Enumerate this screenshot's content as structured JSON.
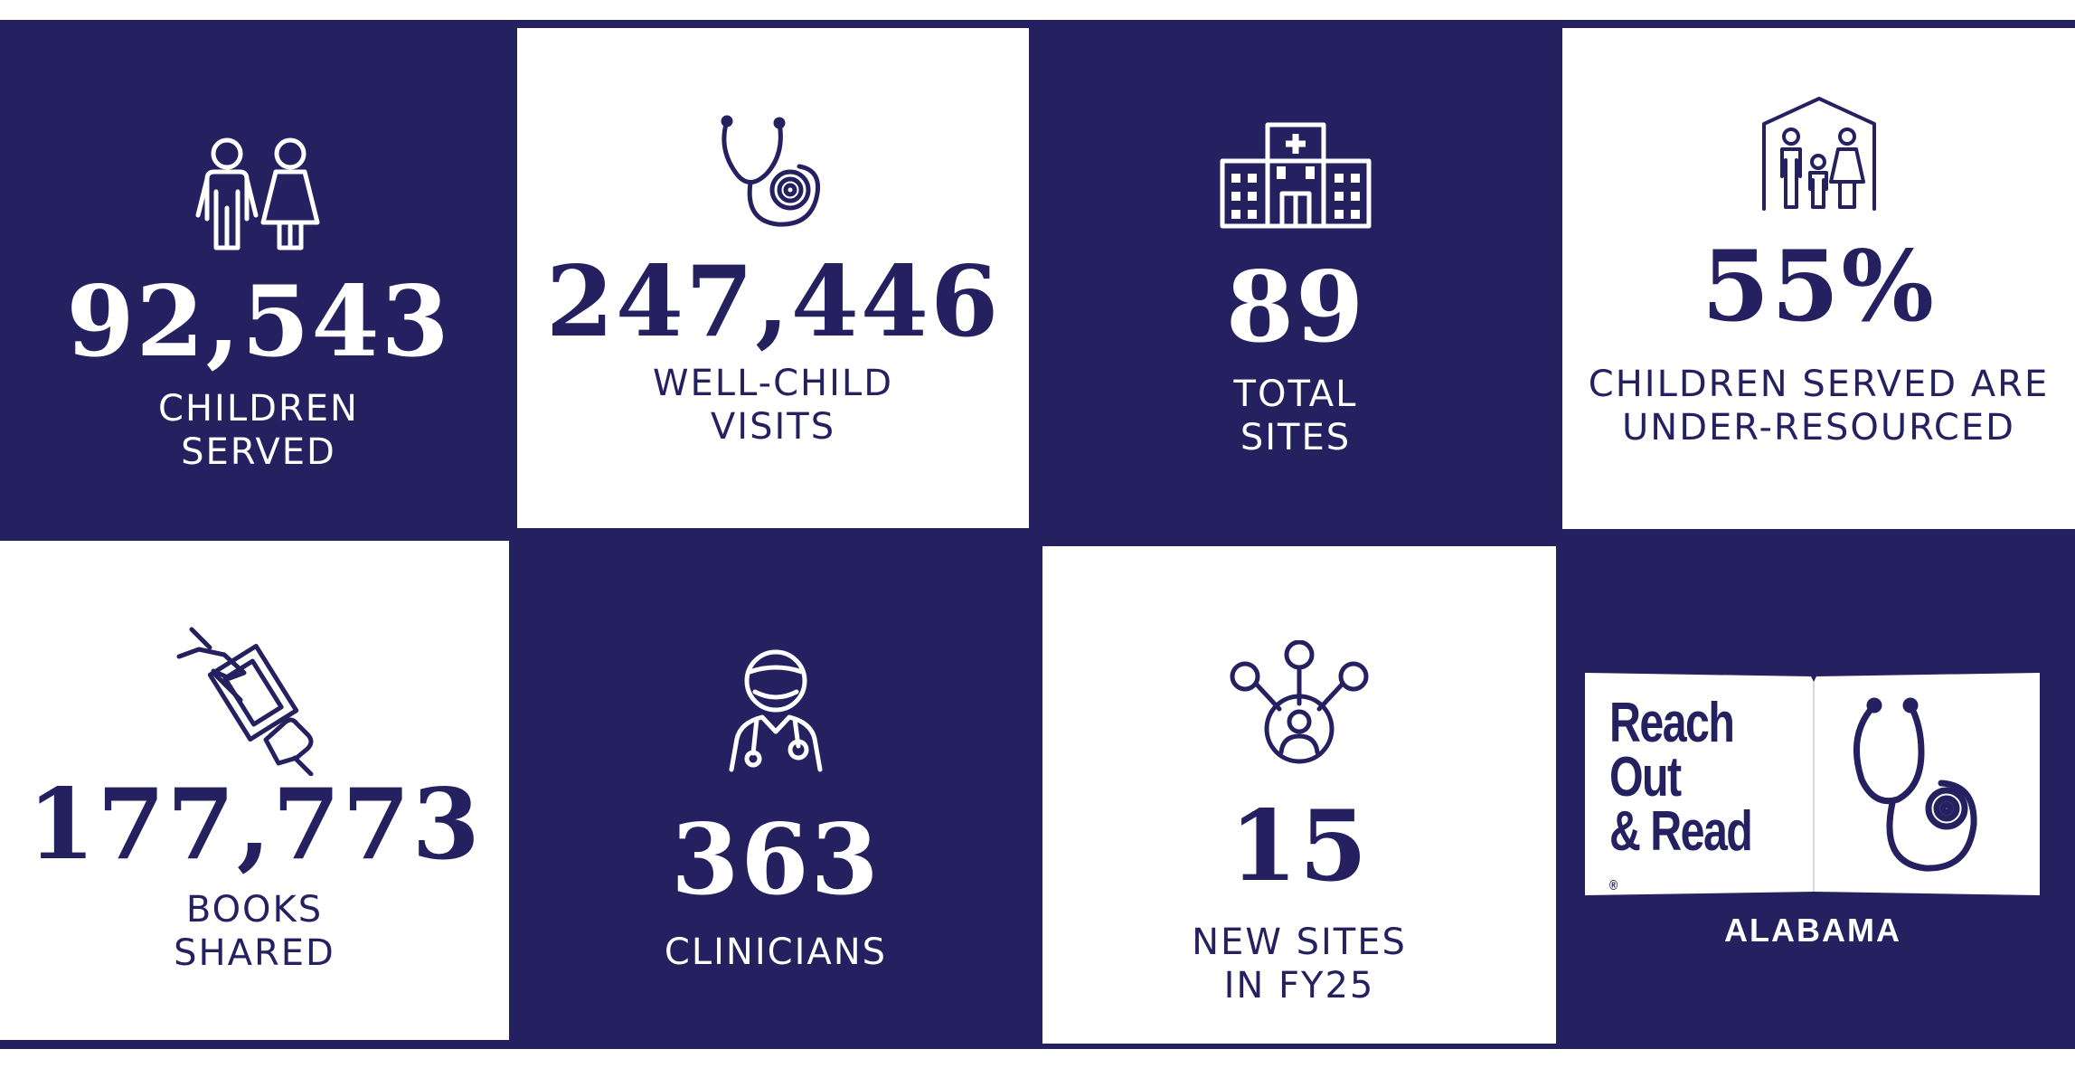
{
  "colors": {
    "navy": "#252161",
    "white": "#ffffff"
  },
  "tiles": [
    {
      "icon": "children-icon",
      "number": "92,543",
      "label": [
        "CHILDREN",
        "SERVED"
      ]
    },
    {
      "icon": "stethoscope-icon",
      "number": "247,446",
      "label": [
        "WELL-CHILD",
        "VISITS"
      ]
    },
    {
      "icon": "hospital-icon",
      "number": "89",
      "label": [
        "TOTAL",
        "SITES"
      ]
    },
    {
      "icon": "family-home-icon",
      "number": "55%",
      "label": [
        "CHILDREN SERVED ARE",
        "UNDER-RESOURCED"
      ]
    },
    {
      "icon": "book-handoff-icon",
      "number": "177,773",
      "label": [
        "BOOKS",
        "SHARED"
      ]
    },
    {
      "icon": "clinician-icon",
      "number": "363",
      "label": [
        "CLINICIANS"
      ]
    },
    {
      "icon": "network-icon",
      "number": "15",
      "label": [
        "NEW SITES",
        "IN FY25"
      ]
    }
  ],
  "logo": {
    "lines": [
      "Reach",
      "Out",
      "& Read"
    ],
    "registered": "®",
    "state": "ALABAMA",
    "icon": "stethoscope-book-icon"
  }
}
